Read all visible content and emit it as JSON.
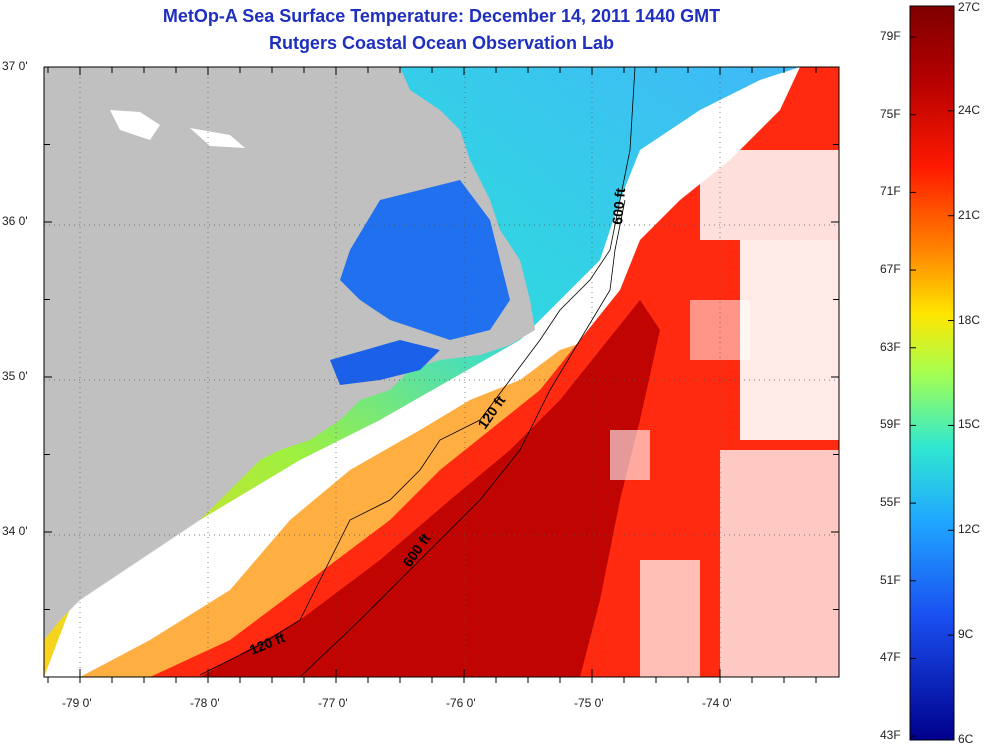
{
  "title": "MetOp-A Sea Surface Temperature:  December 14, 2011 1440 GMT",
  "subtitle": "Rutgers Coastal Ocean Observation Lab",
  "latitude_labels": [
    {
      "label": "37 0'",
      "lat": 37
    },
    {
      "label": "36 0'",
      "lat": 36
    },
    {
      "label": "35 0'",
      "lat": 35
    },
    {
      "label": "34 0'",
      "lat": 34
    }
  ],
  "longitude_labels": [
    {
      "label": "-79 0'",
      "lon": -79
    },
    {
      "label": "-78 0'",
      "lon": -78
    },
    {
      "label": "-77 0'",
      "lon": -77
    },
    {
      "label": "-76 0'",
      "lon": -76
    },
    {
      "label": "-75 0'",
      "lon": -75
    },
    {
      "label": "-74 0'",
      "lon": -74
    }
  ],
  "isobaths": [
    {
      "label": "120 ft"
    },
    {
      "label": "600 ft"
    }
  ],
  "colorbar": {
    "fahrenheit": [
      "79F",
      "75F",
      "71F",
      "67F",
      "63F",
      "59F",
      "55F",
      "51F",
      "47F",
      "43F"
    ],
    "celsius": [
      "27C",
      "24C",
      "21C",
      "18C",
      "15C",
      "12C",
      "9C",
      "6C"
    ],
    "colors": [
      "#8b0000",
      "#c80000",
      "#ff2000",
      "#ff8000",
      "#ffe000",
      "#b0ff40",
      "#30e0d0",
      "#20a8ff",
      "#1040e0",
      "#00008c"
    ]
  },
  "colors": {
    "land": "#c0c0c0",
    "title": "#1f2fbf"
  }
}
